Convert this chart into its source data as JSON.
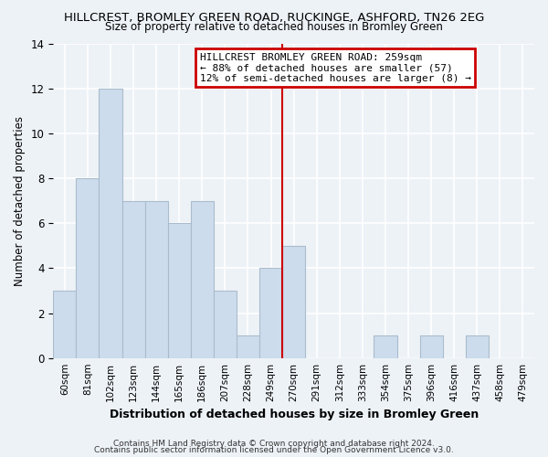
{
  "title": "HILLCREST, BROMLEY GREEN ROAD, RUCKINGE, ASHFORD, TN26 2EG",
  "subtitle": "Size of property relative to detached houses in Bromley Green",
  "xlabel": "Distribution of detached houses by size in Bromley Green",
  "ylabel": "Number of detached properties",
  "bar_labels": [
    "60sqm",
    "81sqm",
    "102sqm",
    "123sqm",
    "144sqm",
    "165sqm",
    "186sqm",
    "207sqm",
    "228sqm",
    "249sqm",
    "270sqm",
    "291sqm",
    "312sqm",
    "333sqm",
    "354sqm",
    "375sqm",
    "396sqm",
    "416sqm",
    "437sqm",
    "458sqm",
    "479sqm"
  ],
  "bar_values": [
    3,
    8,
    12,
    7,
    7,
    6,
    7,
    3,
    1,
    4,
    5,
    0,
    0,
    0,
    1,
    0,
    1,
    0,
    1,
    0,
    0
  ],
  "bar_color": "#ccdcec",
  "bar_edge_color": "#aabccc",
  "property_line_x": 9.5,
  "property_line_color": "#cc0000",
  "annotation_title": "HILLCREST BROMLEY GREEN ROAD: 259sqm",
  "annotation_line1": "← 88% of detached houses are smaller (57)",
  "annotation_line2": "12% of semi-detached houses are larger (8) →",
  "annotation_box_color": "#ffffff",
  "annotation_box_edge": "#cc0000",
  "ylim": [
    0,
    14
  ],
  "yticks": [
    0,
    2,
    4,
    6,
    8,
    10,
    12,
    14
  ],
  "footer1": "Contains HM Land Registry data © Crown copyright and database right 2024.",
  "footer2": "Contains public sector information licensed under the Open Government Licence v3.0.",
  "background_color": "#edf2f7"
}
